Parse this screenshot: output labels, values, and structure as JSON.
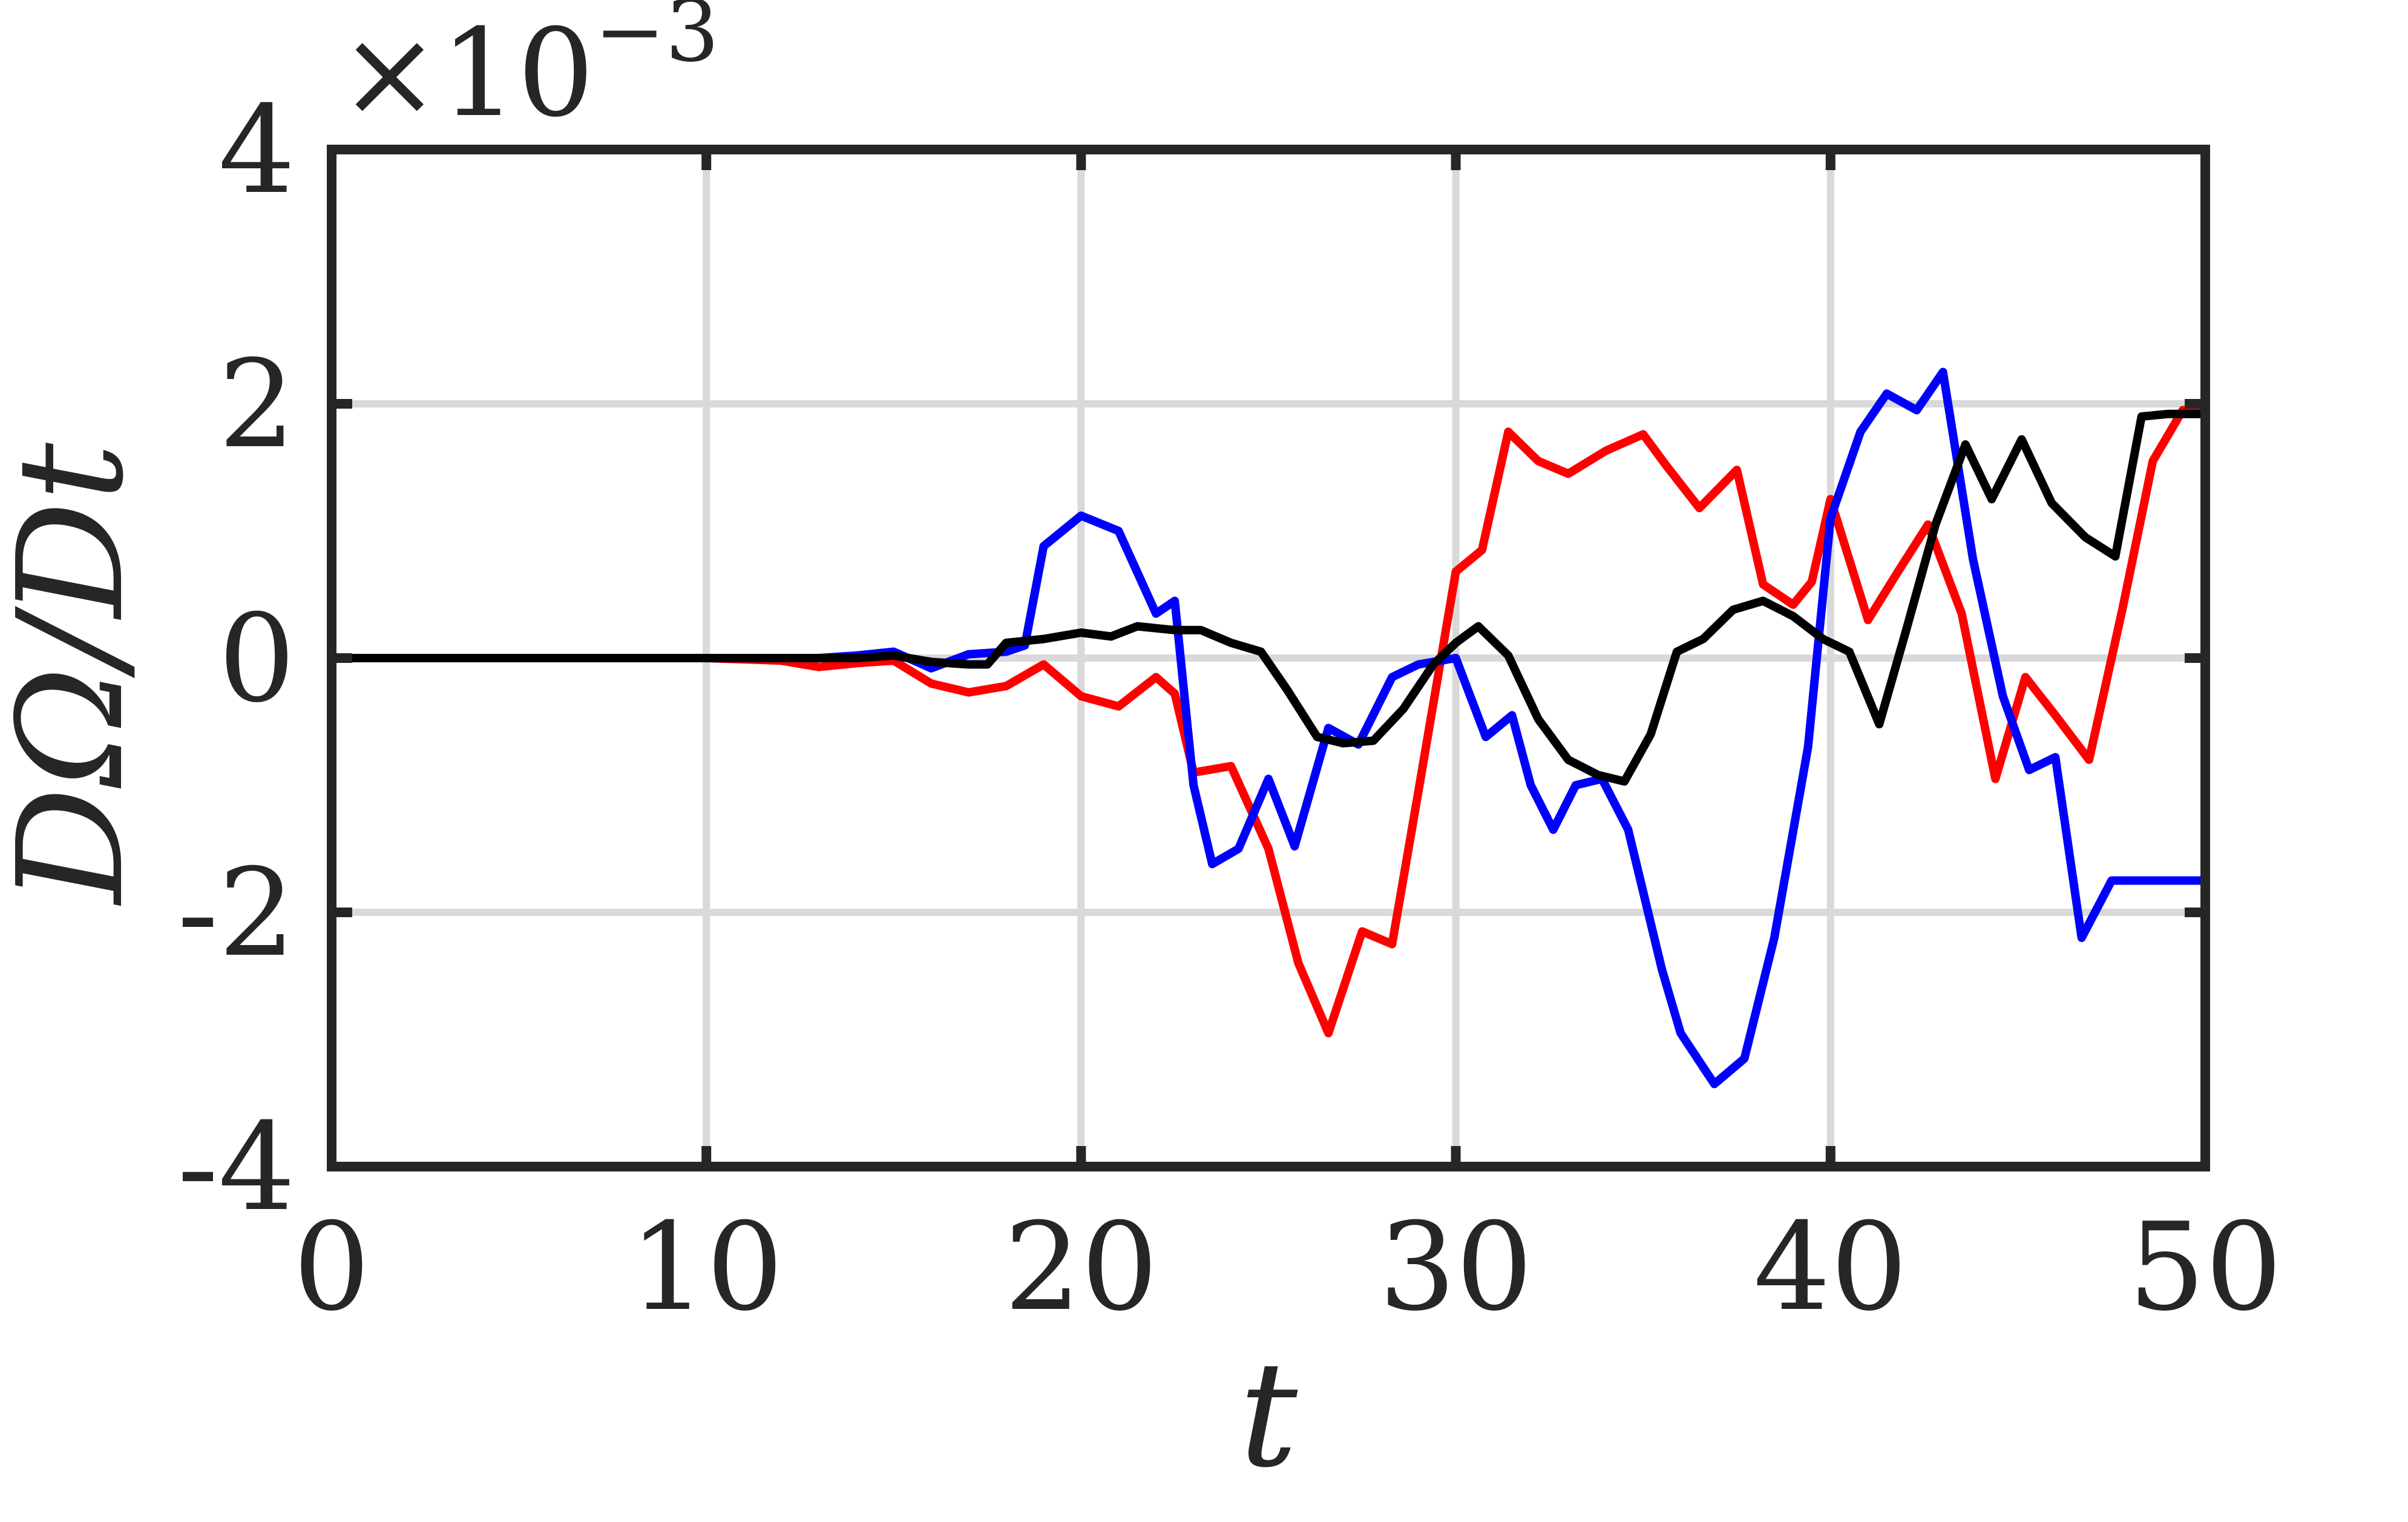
{
  "chart_data": {
    "type": "line",
    "xlabel": "t",
    "ylabel": "DΩ/Dt",
    "y_multiplier": {
      "base": "×10",
      "exponent": "−3"
    },
    "xlim": [
      0,
      50
    ],
    "ylim": [
      -4,
      4
    ],
    "xticks": [
      0,
      10,
      20,
      30,
      40,
      50
    ],
    "xtick_labels": [
      "0",
      "10",
      "20",
      "30",
      "40",
      "50"
    ],
    "yticks": [
      -4,
      -2,
      0,
      2,
      4
    ],
    "ytick_labels": [
      "-4",
      "-2",
      "0",
      "2",
      "4"
    ],
    "grid": true,
    "colors": {
      "grid": "#d9d9d9",
      "axes": "#262626"
    },
    "series": [
      {
        "color": "#ff0000",
        "x": [
          0,
          2,
          4,
          6,
          8,
          10,
          12,
          13,
          14,
          15,
          16,
          17,
          18,
          19,
          20,
          21,
          22,
          22.5,
          23,
          24,
          25,
          25.8,
          26.6,
          27.5,
          28.3,
          29,
          30,
          30.7,
          31.4,
          32.2,
          33,
          34,
          35,
          35.6,
          36.5,
          37.5,
          38.2,
          39,
          39.5,
          40,
          41,
          41.8,
          42.6,
          43.5,
          44.4,
          45.2,
          46,
          46.9,
          47.8,
          48.6,
          49.4,
          50
        ],
        "y": [
          0,
          0,
          0,
          0,
          0,
          0,
          -0.02,
          -0.07,
          -0.04,
          -0.02,
          -0.2,
          -0.27,
          -0.22,
          -0.05,
          -0.3,
          -0.38,
          -0.15,
          -0.28,
          -0.9,
          -0.85,
          -1.5,
          -2.4,
          -2.95,
          -2.15,
          -2.25,
          -1.05,
          0.68,
          0.85,
          1.78,
          1.55,
          1.45,
          1.63,
          1.76,
          1.52,
          1.18,
          1.48,
          0.58,
          0.42,
          0.6,
          1.25,
          0.3,
          0.68,
          1.05,
          0.35,
          -0.95,
          -0.15,
          -0.45,
          -0.8,
          0.4,
          1.55,
          1.95,
          1.95
        ]
      },
      {
        "color": "#0000ff",
        "x": [
          0,
          2,
          4,
          6,
          8,
          10,
          12,
          13,
          14,
          15,
          16,
          17,
          18,
          18.5,
          19,
          20,
          21,
          22,
          22.5,
          23,
          23.5,
          24.2,
          25,
          25.7,
          26.6,
          27.4,
          28.3,
          29,
          30,
          30.8,
          31.5,
          32,
          32.6,
          33.2,
          33.9,
          34.6,
          35.5,
          36,
          36.9,
          37.7,
          38.5,
          39.4,
          40,
          40.8,
          41.5,
          42.3,
          43,
          43.8,
          44.6,
          45.3,
          46,
          46.7,
          47.5,
          48.3,
          49,
          49.5,
          50
        ],
        "y": [
          0,
          0,
          0,
          0,
          0,
          0,
          0,
          0,
          0.02,
          0.05,
          -0.08,
          0.03,
          0.05,
          0.1,
          0.88,
          1.12,
          1.0,
          0.35,
          0.45,
          -1.0,
          -1.62,
          -1.5,
          -0.95,
          -1.48,
          -0.55,
          -0.68,
          -0.15,
          -0.05,
          0,
          -0.62,
          -0.45,
          -1.0,
          -1.35,
          -1.0,
          -0.95,
          -1.35,
          -2.45,
          -2.95,
          -3.35,
          -3.15,
          -2.2,
          -0.7,
          1.1,
          1.78,
          2.08,
          1.95,
          2.25,
          0.78,
          -0.3,
          -0.88,
          -0.78,
          -2.2,
          -1.75,
          -1.75,
          -1.75,
          -1.75,
          -1.75
        ]
      },
      {
        "color": "#000000",
        "x": [
          0,
          2,
          4,
          6,
          8,
          10,
          12,
          13,
          14,
          15,
          16,
          17,
          17.5,
          18,
          19,
          20,
          20.8,
          21.5,
          22.5,
          23.2,
          24,
          24.8,
          25.5,
          26.3,
          27,
          27.8,
          28.6,
          29.4,
          30,
          30.6,
          31.4,
          32.2,
          33,
          33.8,
          34.5,
          35.2,
          35.9,
          36.6,
          37.4,
          38.2,
          39,
          39.8,
          40.5,
          41.3,
          42,
          42.8,
          43.6,
          44.3,
          45.1,
          45.9,
          46.8,
          47.6,
          48.3,
          49,
          49.5,
          50
        ],
        "y": [
          0,
          0,
          0,
          0,
          0,
          0,
          0,
          0,
          0,
          0.02,
          -0.03,
          -0.05,
          -0.05,
          0.12,
          0.15,
          0.2,
          0.17,
          0.25,
          0.22,
          0.22,
          0.12,
          0.05,
          -0.25,
          -0.62,
          -0.67,
          -0.65,
          -0.4,
          -0.05,
          0.12,
          0.25,
          0.02,
          -0.48,
          -0.8,
          -0.92,
          -0.97,
          -0.6,
          0.05,
          0.15,
          0.38,
          0.45,
          0.33,
          0.15,
          0.05,
          -0.52,
          0.2,
          1.05,
          1.68,
          1.25,
          1.72,
          1.22,
          0.95,
          0.8,
          1.9,
          1.92,
          1.92,
          1.92
        ]
      }
    ]
  }
}
